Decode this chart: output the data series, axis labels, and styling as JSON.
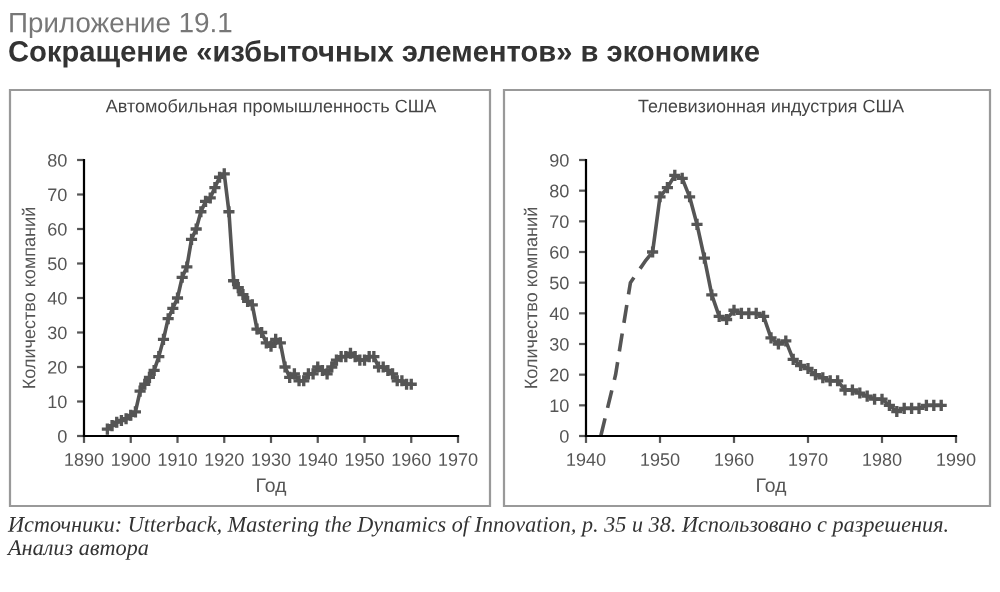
{
  "chart_data": [
    {
      "type": "line",
      "title": "Автомобильная промышленность США",
      "xlabel": "Год",
      "ylabel": "Количество компаний",
      "xlim": [
        1890,
        1970
      ],
      "xticks": [
        1890,
        1900,
        1910,
        1920,
        1930,
        1940,
        1950,
        1960,
        1970
      ],
      "ylim": [
        0,
        80
      ],
      "yticks": [
        0,
        10,
        20,
        30,
        40,
        50,
        60,
        70,
        80
      ],
      "grid": false,
      "legend": false,
      "series": [
        {
          "color": "#555555",
          "marker": "cross",
          "line_style": "solid",
          "x": [
            1895,
            1896,
            1897,
            1898,
            1899,
            1900,
            1901,
            1902,
            1903,
            1904,
            1905,
            1906,
            1907,
            1908,
            1909,
            1910,
            1911,
            1912,
            1913,
            1914,
            1915,
            1916,
            1917,
            1918,
            1919,
            1920,
            1921,
            1922,
            1923,
            1924,
            1925,
            1926,
            1927,
            1928,
            1929,
            1930,
            1931,
            1932,
            1933,
            1934,
            1935,
            1936,
            1937,
            1938,
            1939,
            1940,
            1941,
            1942,
            1943,
            1944,
            1945,
            1946,
            1947,
            1948,
            1949,
            1950,
            1951,
            1952,
            1953,
            1954,
            1955,
            1956,
            1957,
            1958,
            1959,
            1960
          ],
          "values": [
            2,
            3,
            4,
            4.5,
            5,
            6,
            7,
            13,
            15,
            17,
            19,
            23,
            28,
            34,
            37,
            40,
            46,
            49,
            57,
            60,
            65,
            68,
            69,
            72,
            75,
            76,
            65,
            45,
            43,
            41,
            39,
            38,
            31,
            30,
            27,
            26,
            28,
            27,
            20,
            17,
            18,
            16,
            16,
            18,
            18,
            20,
            19,
            18,
            20,
            22,
            23,
            23,
            24,
            23,
            22,
            22,
            23,
            23,
            20,
            20,
            19,
            18,
            16,
            16,
            15,
            15
          ]
        }
      ]
    },
    {
      "type": "line",
      "title": "Телевизионная индустрия США",
      "xlabel": "Год",
      "ylabel": "Количество компаний",
      "xlim": [
        1940,
        1990
      ],
      "xticks": [
        1940,
        1950,
        1960,
        1970,
        1980,
        1990
      ],
      "ylim": [
        0,
        90
      ],
      "yticks": [
        0,
        10,
        20,
        30,
        40,
        50,
        60,
        70,
        80,
        90
      ],
      "grid": false,
      "legend": false,
      "series": [
        {
          "color": "#555555",
          "marker": "none",
          "line_style": "dashed",
          "x": [
            1942,
            1944,
            1946,
            1948,
            1949
          ],
          "values": [
            0,
            20,
            50,
            57,
            60
          ]
        },
        {
          "color": "#555555",
          "marker": "cross",
          "line_style": "solid",
          "x": [
            1949,
            1950,
            1951,
            1952,
            1953,
            1954,
            1955,
            1956,
            1957,
            1958,
            1959,
            1960,
            1961,
            1962,
            1963,
            1964,
            1965,
            1966,
            1967,
            1968,
            1969,
            1970,
            1971,
            1972,
            1973,
            1974,
            1975,
            1976,
            1977,
            1978,
            1979,
            1980,
            1981,
            1982,
            1983,
            1984,
            1985,
            1986,
            1987,
            1988
          ],
          "values": [
            60,
            78,
            81,
            85,
            84,
            78,
            69,
            58,
            46,
            39,
            38,
            41,
            40,
            40,
            40,
            39,
            32,
            30,
            31,
            25,
            23,
            22,
            20,
            19,
            18,
            18,
            15,
            15,
            14,
            13,
            12,
            12,
            10,
            8,
            9,
            9,
            9,
            10,
            10,
            10
          ]
        }
      ]
    },
    {
      "type": "other",
      "subtitle": "Приложение 19.1",
      "title": "Сокращение «избыточных элементов» в экономике",
      "annotations": [
        "Источники: Utterback, Mastering the Dynamics of Innovation, p. 35 и 38. Использовано с разрешения. Анализ автора"
      ]
    }
  ]
}
